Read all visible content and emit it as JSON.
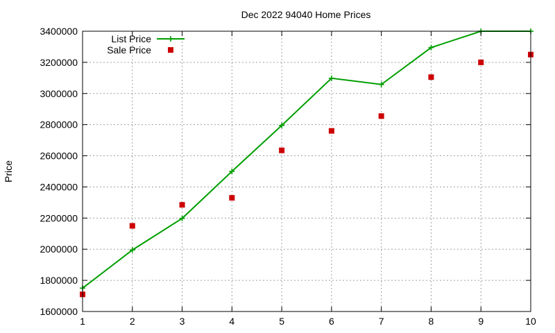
{
  "chart_data": {
    "type": "line",
    "title": "Dec 2022 94040 Home Prices",
    "xlabel": "",
    "ylabel": "Price",
    "xlim": [
      1,
      10
    ],
    "ylim": [
      1600000,
      3400000
    ],
    "x_ticks": [
      1,
      2,
      3,
      4,
      5,
      6,
      7,
      8,
      9,
      10
    ],
    "y_ticks": [
      1600000,
      1800000,
      2000000,
      2200000,
      2400000,
      2600000,
      2800000,
      3000000,
      3200000,
      3400000
    ],
    "grid": true,
    "legend_position": "top-left",
    "x": [
      1,
      2,
      3,
      4,
      5,
      6,
      7,
      8,
      9,
      10
    ],
    "series": [
      {
        "name": "List Price",
        "style": "line-with-plus-markers",
        "color": "#009e00",
        "values": [
          1750000,
          1995000,
          2198000,
          2500000,
          2795000,
          3098000,
          3058000,
          3295000,
          3400000,
          3400000
        ]
      },
      {
        "name": "Sale Price",
        "style": "square-markers",
        "color": "#cc0000",
        "values": [
          1710000,
          2150000,
          2285000,
          2330000,
          2635000,
          2760000,
          2855000,
          3105000,
          3200000,
          3250000
        ]
      }
    ]
  }
}
